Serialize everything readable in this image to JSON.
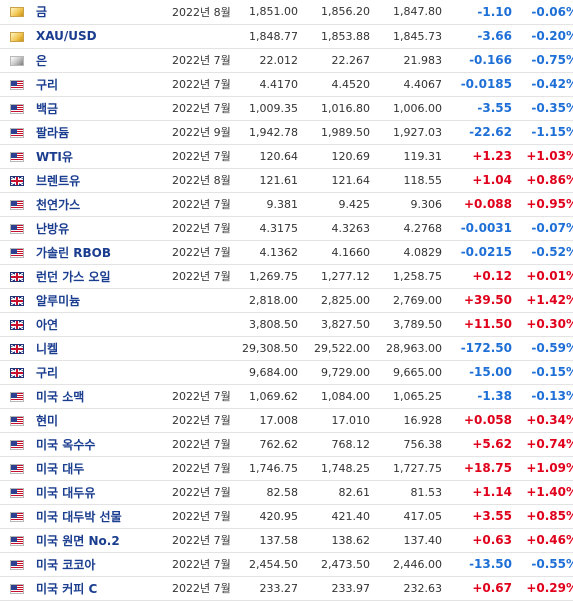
{
  "colors": {
    "up": "#e0001b",
    "down": "#1e6fd6",
    "name": "#1a3d8f"
  },
  "rows": [
    {
      "flag": "gold",
      "flag_icon": "gold-bar-icon",
      "name": "금",
      "month": "2022년 8월",
      "last": "1,851.00",
      "high": "1,856.20",
      "low": "1,847.80",
      "chg": "-1.10",
      "pct": "-0.06%",
      "dir": "down"
    },
    {
      "flag": "gold",
      "flag_icon": "gold-bar-icon",
      "name": "XAU/USD",
      "month": "",
      "last": "1,848.77",
      "high": "1,853.88",
      "low": "1,845.73",
      "chg": "-3.66",
      "pct": "-0.20%",
      "dir": "down"
    },
    {
      "flag": "silver",
      "flag_icon": "silver-bar-icon",
      "name": "은",
      "month": "2022년 7월",
      "last": "22.012",
      "high": "22.267",
      "low": "21.983",
      "chg": "-0.166",
      "pct": "-0.75%",
      "dir": "down"
    },
    {
      "flag": "us",
      "flag_icon": "us-flag-icon",
      "name": "구리",
      "month": "2022년 7월",
      "last": "4.4170",
      "high": "4.4520",
      "low": "4.4067",
      "chg": "-0.0185",
      "pct": "-0.42%",
      "dir": "down"
    },
    {
      "flag": "us",
      "flag_icon": "us-flag-icon",
      "name": "백금",
      "month": "2022년 7월",
      "last": "1,009.35",
      "high": "1,016.80",
      "low": "1,006.00",
      "chg": "-3.55",
      "pct": "-0.35%",
      "dir": "down"
    },
    {
      "flag": "us",
      "flag_icon": "us-flag-icon",
      "name": "팔라듐",
      "month": "2022년 9월",
      "last": "1,942.78",
      "high": "1,989.50",
      "low": "1,927.03",
      "chg": "-22.62",
      "pct": "-1.15%",
      "dir": "down"
    },
    {
      "flag": "us",
      "flag_icon": "us-flag-icon",
      "name": "WTI유",
      "month": "2022년 7월",
      "last": "120.64",
      "high": "120.69",
      "low": "119.31",
      "chg": "+1.23",
      "pct": "+1.03%",
      "dir": "up"
    },
    {
      "flag": "uk",
      "flag_icon": "uk-flag-icon",
      "name": "브렌트유",
      "month": "2022년 8월",
      "last": "121.61",
      "high": "121.64",
      "low": "118.55",
      "chg": "+1.04",
      "pct": "+0.86%",
      "dir": "up"
    },
    {
      "flag": "us",
      "flag_icon": "us-flag-icon",
      "name": "천연가스",
      "month": "2022년 7월",
      "last": "9.381",
      "high": "9.425",
      "low": "9.306",
      "chg": "+0.088",
      "pct": "+0.95%",
      "dir": "up"
    },
    {
      "flag": "us",
      "flag_icon": "us-flag-icon",
      "name": "난방유",
      "month": "2022년 7월",
      "last": "4.3175",
      "high": "4.3263",
      "low": "4.2768",
      "chg": "-0.0031",
      "pct": "-0.07%",
      "dir": "down"
    },
    {
      "flag": "us",
      "flag_icon": "us-flag-icon",
      "name": "가솔린 RBOB",
      "month": "2022년 7월",
      "last": "4.1362",
      "high": "4.1660",
      "low": "4.0829",
      "chg": "-0.0215",
      "pct": "-0.52%",
      "dir": "down"
    },
    {
      "flag": "uk",
      "flag_icon": "uk-flag-icon",
      "name": "런던 가스 오일",
      "month": "2022년 7월",
      "last": "1,269.75",
      "high": "1,277.12",
      "low": "1,258.75",
      "chg": "+0.12",
      "pct": "+0.01%",
      "dir": "up"
    },
    {
      "flag": "uk",
      "flag_icon": "uk-flag-icon",
      "name": "알루미늄",
      "month": "",
      "last": "2,818.00",
      "high": "2,825.00",
      "low": "2,769.00",
      "chg": "+39.50",
      "pct": "+1.42%",
      "dir": "up"
    },
    {
      "flag": "uk",
      "flag_icon": "uk-flag-icon",
      "name": "아연",
      "month": "",
      "last": "3,808.50",
      "high": "3,827.50",
      "low": "3,789.50",
      "chg": "+11.50",
      "pct": "+0.30%",
      "dir": "up"
    },
    {
      "flag": "uk",
      "flag_icon": "uk-flag-icon",
      "name": "니켈",
      "month": "",
      "last": "29,308.50",
      "high": "29,522.00",
      "low": "28,963.00",
      "chg": "-172.50",
      "pct": "-0.59%",
      "dir": "down"
    },
    {
      "flag": "uk",
      "flag_icon": "uk-flag-icon",
      "name": "구리",
      "month": "",
      "last": "9,684.00",
      "high": "9,729.00",
      "low": "9,665.00",
      "chg": "-15.00",
      "pct": "-0.15%",
      "dir": "down"
    },
    {
      "flag": "us",
      "flag_icon": "us-flag-icon",
      "name": "미국 소맥",
      "month": "2022년 7월",
      "last": "1,069.62",
      "high": "1,084.00",
      "low": "1,065.25",
      "chg": "-1.38",
      "pct": "-0.13%",
      "dir": "down"
    },
    {
      "flag": "us",
      "flag_icon": "us-flag-icon",
      "name": "현미",
      "month": "2022년 7월",
      "last": "17.008",
      "high": "17.010",
      "low": "16.928",
      "chg": "+0.058",
      "pct": "+0.34%",
      "dir": "up"
    },
    {
      "flag": "us",
      "flag_icon": "us-flag-icon",
      "name": "미국 옥수수",
      "month": "2022년 7월",
      "last": "762.62",
      "high": "768.12",
      "low": "756.38",
      "chg": "+5.62",
      "pct": "+0.74%",
      "dir": "up"
    },
    {
      "flag": "us",
      "flag_icon": "us-flag-icon",
      "name": "미국 대두",
      "month": "2022년 7월",
      "last": "1,746.75",
      "high": "1,748.25",
      "low": "1,727.75",
      "chg": "+18.75",
      "pct": "+1.09%",
      "dir": "up"
    },
    {
      "flag": "us",
      "flag_icon": "us-flag-icon",
      "name": "미국 대두유",
      "month": "2022년 7월",
      "last": "82.58",
      "high": "82.61",
      "low": "81.53",
      "chg": "+1.14",
      "pct": "+1.40%",
      "dir": "up"
    },
    {
      "flag": "us",
      "flag_icon": "us-flag-icon",
      "name": "미국 대두박 선물",
      "month": "2022년 7월",
      "last": "420.95",
      "high": "421.40",
      "low": "417.05",
      "chg": "+3.55",
      "pct": "+0.85%",
      "dir": "up"
    },
    {
      "flag": "us",
      "flag_icon": "us-flag-icon",
      "name": "미국 원면 No.2",
      "month": "2022년 7월",
      "last": "137.58",
      "high": "138.62",
      "low": "137.40",
      "chg": "+0.63",
      "pct": "+0.46%",
      "dir": "up"
    },
    {
      "flag": "us",
      "flag_icon": "us-flag-icon",
      "name": "미국 코코아",
      "month": "2022년 7월",
      "last": "2,454.50",
      "high": "2,473.50",
      "low": "2,446.00",
      "chg": "-13.50",
      "pct": "-0.55%",
      "dir": "down"
    },
    {
      "flag": "us",
      "flag_icon": "us-flag-icon",
      "name": "미국 커피 C",
      "month": "2022년 7월",
      "last": "233.27",
      "high": "233.97",
      "low": "232.63",
      "chg": "+0.67",
      "pct": "+0.29%",
      "dir": "up"
    }
  ]
}
